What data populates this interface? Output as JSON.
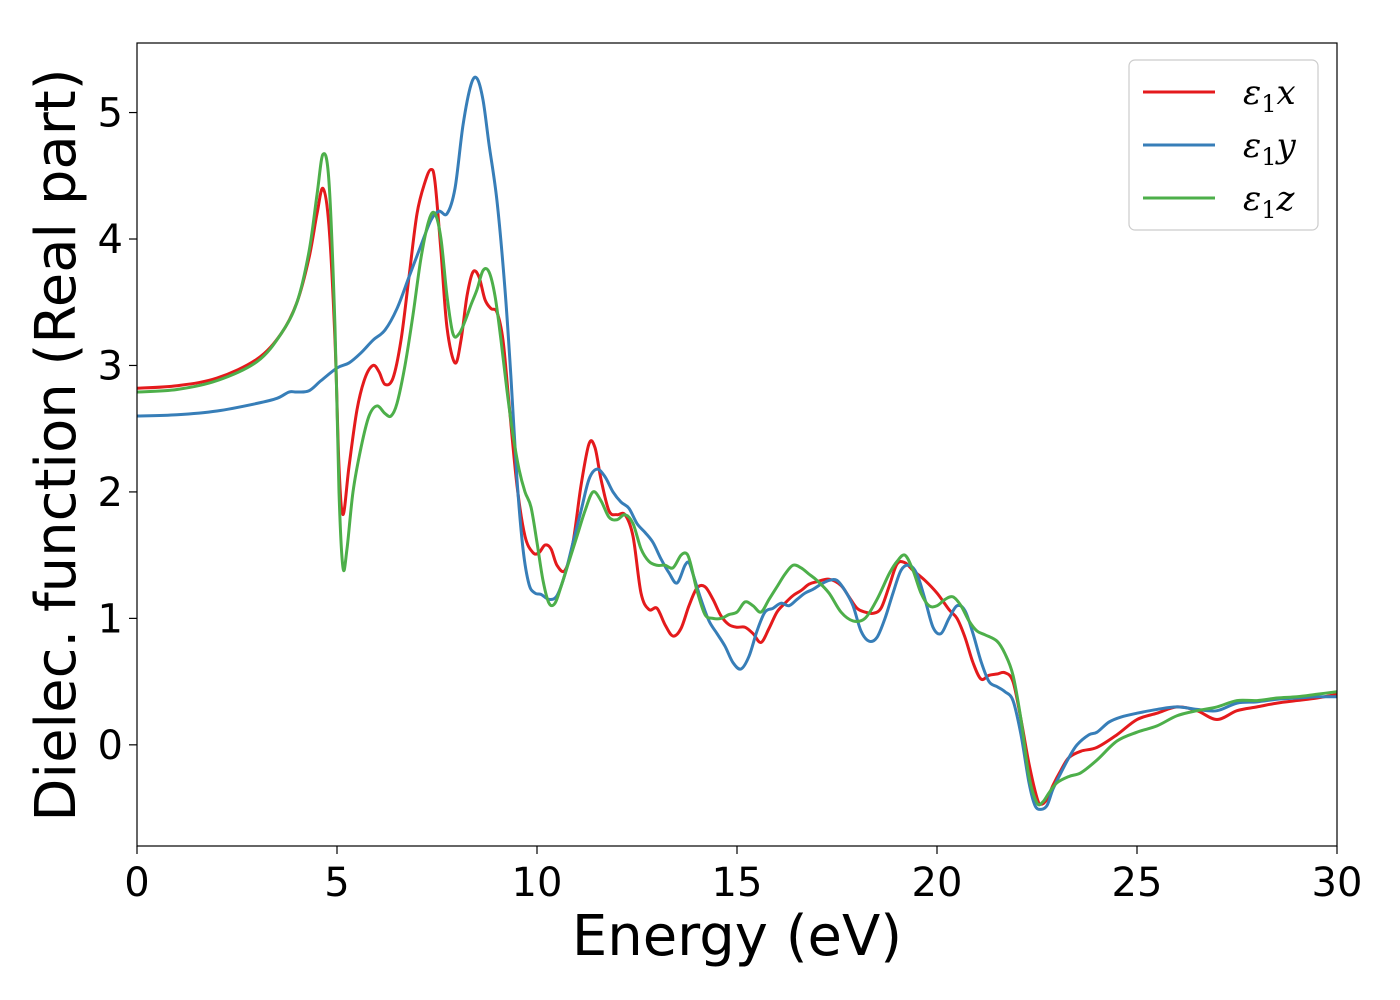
{
  "chart_data": {
    "type": "line",
    "xlabel": "Energy (eV)",
    "ylabel": "Dielec. function (Real part)",
    "xlim": [
      0,
      30
    ],
    "ylim": [
      -0.8,
      5.55
    ],
    "xticks": [
      0,
      5,
      10,
      15,
      20,
      25,
      30
    ],
    "yticks": [
      0,
      1,
      2,
      3,
      4,
      5
    ],
    "grid": false,
    "legend_position": "top-right",
    "series": [
      {
        "name": "ε1x",
        "legend": {
          "symbol": "ε",
          "sub": "1",
          "var": "x"
        },
        "color": "#e41a1c",
        "x": [
          0,
          1,
          2,
          3,
          3.6,
          4.0,
          4.3,
          4.5,
          4.65,
          4.8,
          4.95,
          5.05,
          5.15,
          5.3,
          5.5,
          5.7,
          5.9,
          6.05,
          6.2,
          6.4,
          6.6,
          6.8,
          7.0,
          7.2,
          7.35,
          7.45,
          7.6,
          7.75,
          7.95,
          8.1,
          8.25,
          8.4,
          8.55,
          8.7,
          8.85,
          9.0,
          9.15,
          9.3,
          9.5,
          9.7,
          9.9,
          10.05,
          10.2,
          10.35,
          10.5,
          10.7,
          10.9,
          11.1,
          11.3,
          11.45,
          11.6,
          11.8,
          12.0,
          12.2,
          12.4,
          12.6,
          12.8,
          13.0,
          13.2,
          13.4,
          13.6,
          13.8,
          14.0,
          14.2,
          14.4,
          14.6,
          14.8,
          15.0,
          15.2,
          15.4,
          15.6,
          15.8,
          16.0,
          16.2,
          16.4,
          16.6,
          16.8,
          17.0,
          17.3,
          17.6,
          17.8,
          18.0,
          18.2,
          18.4,
          18.6,
          18.8,
          19.0,
          19.2,
          19.4,
          19.7,
          20.0,
          20.3,
          20.5,
          20.7,
          20.9,
          21.1,
          21.3,
          21.5,
          21.7,
          21.9,
          22.1,
          22.3,
          22.5,
          22.6,
          22.75,
          22.9,
          23.1,
          23.3,
          23.6,
          24.0,
          24.5,
          25.0,
          25.5,
          26.0,
          26.5,
          27.0,
          27.5,
          28.0,
          28.5,
          29.0,
          29.5,
          30.0
        ],
        "y": [
          2.82,
          2.84,
          2.9,
          3.05,
          3.25,
          3.5,
          3.85,
          4.2,
          4.4,
          4.1,
          3.2,
          2.2,
          1.82,
          2.2,
          2.65,
          2.9,
          3.0,
          2.95,
          2.85,
          2.9,
          3.2,
          3.7,
          4.2,
          4.45,
          4.55,
          4.45,
          3.9,
          3.3,
          3.02,
          3.2,
          3.55,
          3.74,
          3.7,
          3.52,
          3.45,
          3.42,
          3.2,
          2.7,
          2.05,
          1.65,
          1.52,
          1.52,
          1.58,
          1.55,
          1.42,
          1.38,
          1.6,
          2.05,
          2.38,
          2.35,
          2.1,
          1.85,
          1.82,
          1.82,
          1.65,
          1.2,
          1.07,
          1.08,
          0.95,
          0.86,
          0.92,
          1.1,
          1.24,
          1.25,
          1.15,
          1.02,
          0.95,
          0.93,
          0.93,
          0.88,
          0.81,
          0.92,
          1.05,
          1.12,
          1.18,
          1.22,
          1.27,
          1.29,
          1.31,
          1.26,
          1.17,
          1.08,
          1.05,
          1.04,
          1.08,
          1.25,
          1.43,
          1.44,
          1.38,
          1.3,
          1.2,
          1.07,
          1.0,
          0.85,
          0.65,
          0.52,
          0.55,
          0.56,
          0.57,
          0.5,
          0.2,
          -0.15,
          -0.42,
          -0.47,
          -0.43,
          -0.32,
          -0.2,
          -0.1,
          -0.05,
          -0.02,
          0.08,
          0.2,
          0.25,
          0.3,
          0.27,
          0.2,
          0.27,
          0.3,
          0.33,
          0.35,
          0.37,
          0.4
        ]
      },
      {
        "name": "ε1y",
        "legend": {
          "symbol": "ε",
          "sub": "1",
          "var": "y"
        },
        "color": "#377eb8",
        "x": [
          0,
          1,
          2,
          3,
          3.5,
          3.8,
          4.0,
          4.3,
          4.6,
          5.0,
          5.3,
          5.6,
          5.9,
          6.2,
          6.5,
          6.8,
          7.1,
          7.35,
          7.55,
          7.75,
          7.95,
          8.15,
          8.35,
          8.5,
          8.65,
          8.8,
          9.0,
          9.2,
          9.35,
          9.5,
          9.65,
          9.8,
          9.95,
          10.1,
          10.3,
          10.5,
          10.7,
          10.9,
          11.1,
          11.3,
          11.5,
          11.7,
          11.9,
          12.1,
          12.3,
          12.5,
          12.7,
          12.9,
          13.1,
          13.3,
          13.5,
          13.7,
          13.8,
          13.9,
          14.1,
          14.3,
          14.5,
          14.7,
          14.9,
          15.1,
          15.3,
          15.5,
          15.7,
          15.9,
          16.1,
          16.3,
          16.5,
          16.7,
          16.9,
          17.1,
          17.3,
          17.5,
          17.7,
          17.9,
          18.1,
          18.3,
          18.5,
          18.7,
          18.9,
          19.1,
          19.3,
          19.5,
          19.7,
          19.9,
          20.1,
          20.3,
          20.5,
          20.7,
          20.9,
          21.1,
          21.3,
          21.5,
          21.7,
          21.9,
          22.1,
          22.3,
          22.45,
          22.6,
          22.75,
          22.9,
          23.1,
          23.3,
          23.5,
          23.8,
          24.0,
          24.3,
          24.6,
          25.0,
          25.5,
          26.0,
          26.5,
          27.0,
          27.5,
          28.0,
          28.5,
          29.0,
          29.5,
          30.0
        ],
        "y": [
          2.6,
          2.61,
          2.64,
          2.7,
          2.74,
          2.79,
          2.79,
          2.8,
          2.88,
          2.98,
          3.02,
          3.1,
          3.2,
          3.28,
          3.45,
          3.7,
          3.95,
          4.15,
          4.22,
          4.2,
          4.4,
          4.9,
          5.22,
          5.27,
          5.1,
          4.75,
          4.3,
          3.6,
          2.9,
          2.1,
          1.55,
          1.27,
          1.2,
          1.19,
          1.15,
          1.18,
          1.35,
          1.6,
          1.85,
          2.1,
          2.18,
          2.12,
          2.0,
          1.92,
          1.87,
          1.75,
          1.68,
          1.6,
          1.47,
          1.36,
          1.28,
          1.42,
          1.44,
          1.35,
          1.15,
          0.98,
          0.88,
          0.78,
          0.65,
          0.6,
          0.7,
          0.9,
          1.05,
          1.08,
          1.12,
          1.1,
          1.15,
          1.2,
          1.23,
          1.27,
          1.3,
          1.3,
          1.22,
          1.1,
          0.9,
          0.82,
          0.85,
          1.0,
          1.2,
          1.38,
          1.42,
          1.35,
          1.15,
          0.93,
          0.88,
          1.0,
          1.1,
          1.06,
          0.88,
          0.66,
          0.5,
          0.46,
          0.42,
          0.35,
          0.08,
          -0.3,
          -0.48,
          -0.51,
          -0.48,
          -0.35,
          -0.22,
          -0.1,
          0.0,
          0.08,
          0.1,
          0.18,
          0.22,
          0.25,
          0.28,
          0.3,
          0.28,
          0.27,
          0.33,
          0.34,
          0.36,
          0.37,
          0.38,
          0.38
        ]
      },
      {
        "name": "ε1z",
        "legend": {
          "symbol": "ε",
          "sub": "1",
          "var": "z"
        },
        "color": "#4daf4a",
        "x": [
          0,
          1,
          2,
          3,
          3.6,
          4.0,
          4.3,
          4.5,
          4.65,
          4.8,
          4.95,
          5.05,
          5.15,
          5.25,
          5.4,
          5.6,
          5.8,
          6.0,
          6.2,
          6.35,
          6.5,
          6.7,
          6.9,
          7.1,
          7.3,
          7.45,
          7.6,
          7.75,
          7.9,
          8.05,
          8.2,
          8.35,
          8.5,
          8.65,
          8.8,
          8.95,
          9.1,
          9.25,
          9.4,
          9.55,
          9.7,
          9.85,
          10.0,
          10.15,
          10.3,
          10.45,
          10.6,
          10.8,
          11.0,
          11.2,
          11.4,
          11.6,
          11.8,
          12.0,
          12.2,
          12.4,
          12.6,
          12.8,
          13.0,
          13.2,
          13.4,
          13.6,
          13.75,
          13.85,
          14.0,
          14.2,
          14.4,
          14.6,
          14.8,
          15.0,
          15.2,
          15.4,
          15.6,
          15.8,
          16.0,
          16.2,
          16.4,
          16.6,
          16.8,
          17.0,
          17.3,
          17.6,
          17.9,
          18.2,
          18.5,
          18.8,
          19.0,
          19.2,
          19.4,
          19.6,
          19.8,
          20.0,
          20.2,
          20.4,
          20.6,
          20.8,
          21.0,
          21.2,
          21.5,
          21.7,
          21.9,
          22.1,
          22.3,
          22.5,
          22.65,
          22.8,
          23.0,
          23.3,
          23.6,
          24.0,
          24.5,
          25.0,
          25.5,
          26.0,
          26.5,
          27.0,
          27.5,
          28.0,
          28.5,
          29.0,
          29.5,
          30.0
        ],
        "y": [
          2.79,
          2.81,
          2.88,
          3.03,
          3.25,
          3.5,
          3.9,
          4.35,
          4.67,
          4.45,
          3.3,
          2.0,
          1.4,
          1.55,
          2.0,
          2.35,
          2.6,
          2.68,
          2.62,
          2.6,
          2.7,
          3.0,
          3.4,
          3.85,
          4.15,
          4.2,
          4.0,
          3.55,
          3.25,
          3.25,
          3.35,
          3.48,
          3.6,
          3.75,
          3.74,
          3.55,
          3.2,
          2.8,
          2.45,
          2.18,
          2.0,
          1.88,
          1.6,
          1.3,
          1.12,
          1.12,
          1.25,
          1.45,
          1.65,
          1.85,
          2.0,
          1.93,
          1.8,
          1.78,
          1.82,
          1.75,
          1.55,
          1.45,
          1.42,
          1.42,
          1.4,
          1.5,
          1.51,
          1.42,
          1.22,
          1.03,
          1.0,
          1.0,
          1.03,
          1.05,
          1.13,
          1.1,
          1.05,
          1.15,
          1.25,
          1.35,
          1.42,
          1.4,
          1.35,
          1.3,
          1.2,
          1.05,
          0.98,
          1.0,
          1.15,
          1.35,
          1.45,
          1.5,
          1.38,
          1.2,
          1.1,
          1.1,
          1.15,
          1.17,
          1.1,
          0.98,
          0.9,
          0.87,
          0.82,
          0.72,
          0.55,
          0.2,
          -0.25,
          -0.46,
          -0.45,
          -0.38,
          -0.3,
          -0.25,
          -0.22,
          -0.12,
          0.03,
          0.1,
          0.15,
          0.23,
          0.27,
          0.3,
          0.35,
          0.35,
          0.37,
          0.38,
          0.4,
          0.42
        ]
      }
    ]
  }
}
